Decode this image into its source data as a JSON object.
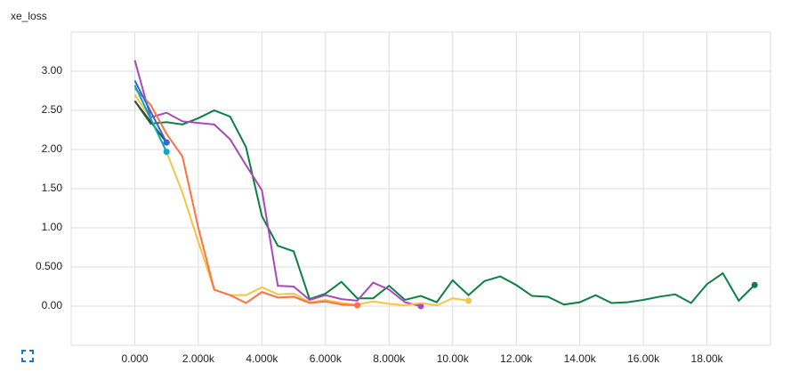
{
  "chart_data": {
    "type": "line",
    "title": "xe_loss",
    "xlim": [
      -2000,
      20000
    ],
    "ylim": [
      -0.5,
      3.5
    ],
    "xticks": [
      {
        "value": 0,
        "label": "0.000"
      },
      {
        "value": 2000,
        "label": "2.000k"
      },
      {
        "value": 4000,
        "label": "4.000k"
      },
      {
        "value": 6000,
        "label": "6.000k"
      },
      {
        "value": 8000,
        "label": "8.000k"
      },
      {
        "value": 10000,
        "label": "10.00k"
      },
      {
        "value": 12000,
        "label": "12.00k"
      },
      {
        "value": 14000,
        "label": "14.00k"
      },
      {
        "value": 16000,
        "label": "16.00k"
      },
      {
        "value": 18000,
        "label": "18.00k"
      }
    ],
    "yticks": [
      {
        "value": 0,
        "label": "0.00"
      },
      {
        "value": 0.5,
        "label": "0.500"
      },
      {
        "value": 1,
        "label": "1.00"
      },
      {
        "value": 1.5,
        "label": "1.50"
      },
      {
        "value": 2,
        "label": "2.00"
      },
      {
        "value": 2.5,
        "label": "2.50"
      },
      {
        "value": 3,
        "label": "3.00"
      }
    ],
    "grid": true,
    "series": [
      {
        "color": "#0b8043",
        "x": [
          0,
          500,
          1000,
          1500,
          2000,
          2500,
          3000,
          3500,
          4000,
          4500,
          5000,
          5500,
          6000,
          6500,
          7000,
          7500,
          8000,
          8500,
          9000,
          9500,
          10000,
          10500,
          11000,
          11500,
          12000,
          12500,
          13000,
          13500,
          14000,
          14500,
          15000,
          15500,
          16000,
          16500,
          17000,
          17500,
          18000,
          18500,
          19000,
          19500
        ],
        "values": [
          2.62,
          2.33,
          2.35,
          2.32,
          2.4,
          2.5,
          2.42,
          2.03,
          1.15,
          0.77,
          0.7,
          0.09,
          0.16,
          0.31,
          0.1,
          0.1,
          0.26,
          0.08,
          0.13,
          0.05,
          0.33,
          0.14,
          0.32,
          0.38,
          0.27,
          0.13,
          0.12,
          0.02,
          0.05,
          0.14,
          0.04,
          0.05,
          0.08,
          0.12,
          0.15,
          0.04,
          0.28,
          0.42,
          0.07,
          0.27
        ]
      },
      {
        "color": "#ab47bc",
        "x": [
          0,
          500,
          1000,
          1500,
          2000,
          2500,
          3000,
          3500,
          4000,
          4500,
          5000,
          5500,
          6000,
          6500,
          7000,
          7500,
          8000,
          8500,
          9000
        ],
        "values": [
          3.14,
          2.41,
          2.47,
          2.36,
          2.34,
          2.32,
          2.13,
          1.8,
          1.48,
          0.26,
          0.25,
          0.08,
          0.14,
          0.09,
          0.07,
          0.3,
          0.21,
          0.05,
          0.0
        ]
      },
      {
        "color": "#f4c542",
        "x": [
          0,
          500,
          1000,
          1500,
          2000,
          2500,
          3000,
          3500,
          4000,
          4500,
          5000,
          5500,
          6000,
          6500,
          7000,
          7500,
          8000,
          8500,
          9000,
          9500,
          10000,
          10500
        ],
        "values": [
          2.7,
          2.4,
          1.97,
          1.45,
          0.82,
          0.21,
          0.14,
          0.14,
          0.24,
          0.15,
          0.16,
          0.05,
          0.08,
          0.04,
          0.02,
          0.06,
          0.03,
          0.01,
          0.04,
          0.01,
          0.1,
          0.07
        ]
      },
      {
        "color": "#ff7043",
        "x": [
          0,
          500,
          1000,
          1500,
          2000,
          2500,
          3000,
          3500,
          4000,
          4500,
          5000,
          5500,
          6000,
          6500,
          7000
        ],
        "values": [
          2.78,
          2.57,
          2.2,
          1.91,
          1.0,
          0.21,
          0.14,
          0.04,
          0.18,
          0.11,
          0.12,
          0.04,
          0.06,
          0.02,
          0.01
        ]
      },
      {
        "color": "#424242",
        "x": [
          0,
          1000
        ],
        "values": [
          2.62,
          2.09
        ]
      },
      {
        "color": "#00acc1",
        "x": [
          0,
          1000
        ],
        "values": [
          2.82,
          1.97
        ]
      },
      {
        "color": "#3367d6",
        "x": [
          0,
          1000
        ],
        "values": [
          2.88,
          2.09
        ]
      }
    ]
  }
}
